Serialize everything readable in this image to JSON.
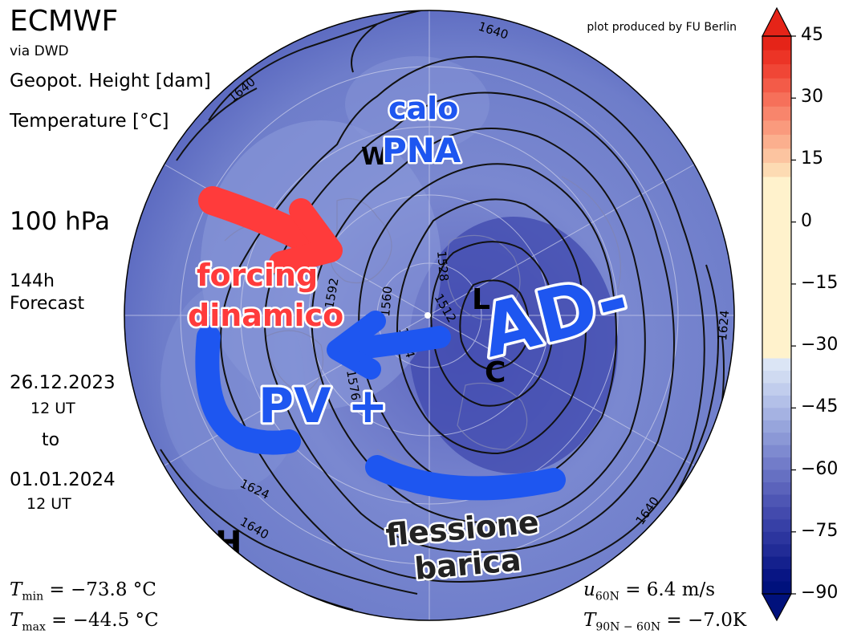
{
  "header": {
    "source": "ECMWF",
    "source_via": "via DWD",
    "variable_contours": "Geopot. Height [dam]",
    "variable_shading": "Temperature [°C]",
    "level": "100 hPa",
    "forecast_hours": "144h",
    "forecast_label": "Forecast",
    "date_start": "26.12.2023",
    "time_start": "12 UT",
    "to_label": "to",
    "date_end": "01.01.2024",
    "time_end": "12 UT",
    "credit": "plot produced by FU Berlin"
  },
  "stats": {
    "tmin_symbol": "T",
    "tmin_sub": "min",
    "tmin_value": " = −73.8 °C",
    "tmax_symbol": "T",
    "tmax_sub": "max",
    "tmax_value": " = −44.5 °C",
    "u_symbol": "u",
    "u_sub": "60N",
    "u_value": " = 6.4 m/s",
    "t_symbol": "T",
    "t_sub": "90N − 60N",
    "t_value": " = −7.0K"
  },
  "colorbar": {
    "ticks": [
      "45",
      "30",
      "15",
      "0",
      "−15",
      "−30",
      "−45",
      "−60",
      "−75",
      "−90"
    ],
    "warm_colors": [
      "#fff2cc",
      "#fddbb3",
      "#fcc4a0",
      "#fbaf8e",
      "#fa9a7d",
      "#f8856c",
      "#f6705a",
      "#f35b48",
      "#f04636",
      "#ec3426",
      "#e52418"
    ],
    "cold_colors": [
      "#dbe5f5",
      "#cfdaf1",
      "#c1cded",
      "#b3c0e8",
      "#a5b2e2",
      "#97a5dc",
      "#8b98d6",
      "#7e8ad0",
      "#727cc9",
      "#6670c2",
      "#5b63bb",
      "#4e56b4",
      "#434aad",
      "#3740a6",
      "#2c359e",
      "#212b96",
      "#14208d",
      "#081584",
      "#00117c"
    ]
  },
  "map": {
    "contour_labels": [
      "1640",
      "1640",
      "1640",
      "1640",
      "1624",
      "1624",
      "1592",
      "1560",
      "1528",
      "1512",
      "1544",
      "1576"
    ],
    "pressure_marks": [
      "W",
      "L",
      "C",
      "H"
    ]
  },
  "annotations": {
    "calo": "calo",
    "pna": "PNA",
    "forcing": "forcing",
    "dinamico": "dinamico",
    "ad_minus": "AD-",
    "pv_plus": "PV +",
    "flessione": "flessione",
    "barica": "barica"
  }
}
